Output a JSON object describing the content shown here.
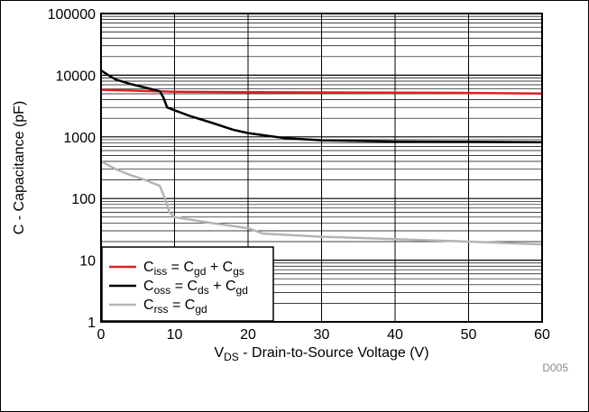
{
  "chart_data": {
    "type": "line",
    "xlabel": {
      "main": "V",
      "sub": "DS",
      "rest": " - Drain-to-Source Voltage (V)"
    },
    "ylabel": "C - Capacitance (pF)",
    "xlim": [
      0,
      60
    ],
    "ylim": [
      1,
      100000
    ],
    "y_scale": "log",
    "grid": true,
    "legend_position": "bottom-left",
    "x_ticks": [
      "0",
      "10",
      "20",
      "30",
      "40",
      "50",
      "60"
    ],
    "y_ticks": [
      "1",
      "10",
      "100",
      "1000",
      "10000",
      "100000"
    ],
    "figure_code": "D005",
    "series": [
      {
        "name": "Ciss = Cgd + Cgs",
        "legend": [
          [
            "C",
            ""
          ],
          [
            "iss",
            "sub"
          ],
          [
            " = C",
            ""
          ],
          [
            "gd",
            "sub"
          ],
          [
            " + C",
            ""
          ],
          [
            "gs",
            "sub"
          ]
        ],
        "color": "#e02020",
        "x": [
          0,
          5,
          10,
          20,
          30,
          40,
          50,
          60
        ],
        "y": [
          5800,
          5600,
          5400,
          5300,
          5250,
          5200,
          5150,
          5050
        ]
      },
      {
        "name": "Coss = Cds + Cgd",
        "legend": [
          [
            "C",
            ""
          ],
          [
            "oss",
            "sub"
          ],
          [
            " = C",
            ""
          ],
          [
            "ds",
            "sub"
          ],
          [
            " + C",
            ""
          ],
          [
            "gd",
            "sub"
          ]
        ],
        "color": "#000000",
        "x": [
          0,
          1,
          2,
          4,
          6,
          8,
          8.5,
          9,
          10,
          12,
          15,
          18,
          20,
          25,
          30,
          40,
          50,
          60
        ],
        "y": [
          12000,
          10000,
          8500,
          7200,
          6300,
          5500,
          4300,
          3000,
          2700,
          2200,
          1700,
          1300,
          1150,
          950,
          880,
          840,
          830,
          820
        ]
      },
      {
        "name": "Crss = Cgd",
        "legend": [
          [
            "C",
            ""
          ],
          [
            "rss",
            "sub"
          ],
          [
            " = C",
            ""
          ],
          [
            "gd",
            "sub"
          ]
        ],
        "color": "#b4b4b4",
        "x": [
          0,
          2,
          4,
          6,
          8,
          8.7,
          9.3,
          10,
          15,
          20,
          22,
          30,
          40,
          50,
          60
        ],
        "y": [
          400,
          300,
          240,
          200,
          160,
          100,
          60,
          50,
          40,
          33,
          27,
          24,
          22,
          20,
          18
        ]
      }
    ]
  }
}
